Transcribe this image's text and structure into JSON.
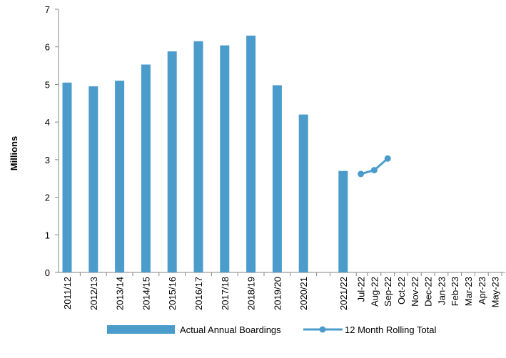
{
  "chart_data": {
    "type": "bar-line",
    "y_axis_label": "Millions",
    "categories": [
      "2011/12",
      "2012/13",
      "2013/14",
      "2014/15",
      "2015/16",
      "2016/17",
      "2017/18",
      "2018/19",
      "2019/20",
      "2020/21",
      null,
      "2021/22",
      "Jul-22",
      "Aug-22",
      "Sep-22",
      "Oct-22",
      "Nov-22",
      "Dec-22",
      "Jan-23",
      "Feb-23",
      "Mar-23",
      "Apr-23",
      "May-23"
    ],
    "series": [
      {
        "name": "Actual Annual Boardings",
        "type": "bar",
        "color": "#4b9ccb",
        "values": [
          5.05,
          4.95,
          5.1,
          5.53,
          5.88,
          6.15,
          6.04,
          6.3,
          4.98,
          4.2,
          null,
          2.7,
          null,
          null,
          null,
          null,
          null,
          null,
          null,
          null,
          null,
          null,
          null
        ]
      },
      {
        "name": "12 Month Rolling Total",
        "type": "line",
        "color": "#4b9ccb",
        "values": [
          null,
          null,
          null,
          null,
          null,
          null,
          null,
          null,
          null,
          null,
          null,
          null,
          2.62,
          2.72,
          3.03,
          null,
          null,
          null,
          null,
          null,
          null,
          null,
          null
        ]
      }
    ],
    "ylim": [
      0,
      7
    ],
    "yticks": [
      0,
      1,
      2,
      3,
      4,
      5,
      6,
      7
    ],
    "grid": false
  }
}
